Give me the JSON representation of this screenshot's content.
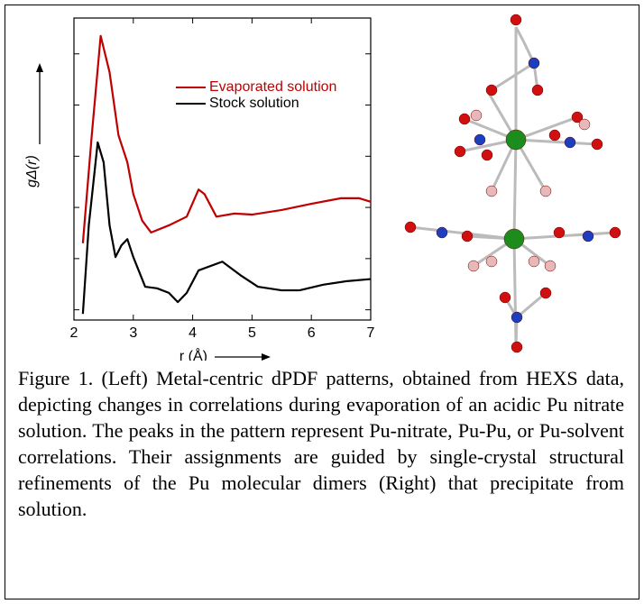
{
  "chart_data": {
    "type": "line",
    "ylabel": "gΔ(r)",
    "xlabel": "r (Å)",
    "xlim": [
      2,
      7
    ],
    "xticks": [
      2,
      3,
      4,
      5,
      6,
      7
    ],
    "ylim": [
      -0.2,
      5.7
    ],
    "yticks": [
      0,
      1,
      2,
      3,
      4,
      5
    ],
    "series": [
      {
        "name": "Evaporated solution",
        "color": "#c00000",
        "x": [
          2.15,
          2.3,
          2.45,
          2.6,
          2.75,
          2.9,
          3.0,
          3.15,
          3.3,
          3.6,
          3.9,
          4.1,
          4.2,
          4.4,
          4.7,
          5.0,
          5.5,
          6.0,
          6.5,
          6.8,
          7.0
        ],
        "values": [
          1.3,
          3.41,
          5.35,
          4.64,
          3.41,
          2.88,
          2.26,
          1.74,
          1.51,
          1.65,
          1.82,
          2.35,
          2.26,
          1.82,
          1.88,
          1.86,
          1.95,
          2.07,
          2.18,
          2.18,
          2.11
        ]
      },
      {
        "name": "Stock solution",
        "color": "#000000",
        "x": [
          2.15,
          2.25,
          2.4,
          2.5,
          2.6,
          2.7,
          2.8,
          2.9,
          3.0,
          3.2,
          3.4,
          3.6,
          3.75,
          3.9,
          4.1,
          4.5,
          4.8,
          5.1,
          5.5,
          5.8,
          6.2,
          6.6,
          7.0
        ],
        "values": [
          -0.08,
          1.65,
          3.27,
          2.88,
          1.65,
          1.03,
          1.26,
          1.38,
          1.03,
          0.45,
          0.42,
          0.33,
          0.15,
          0.33,
          0.77,
          0.94,
          0.68,
          0.45,
          0.38,
          0.38,
          0.49,
          0.56,
          0.6
        ]
      }
    ]
  },
  "caption": "Figure 1. (Left) Metal-centric dPDF patterns, obtained from HEXS data, depicting changes in correlations during evaporation of an acidic Pu nitrate solution. The peaks in the pattern represent Pu-nitrate, Pu-Pu, or Pu-solvent correlations. Their assignments are guided by single-crystal structural refinements of the Pu molecular dimers (Right) that precipitate from solution."
}
